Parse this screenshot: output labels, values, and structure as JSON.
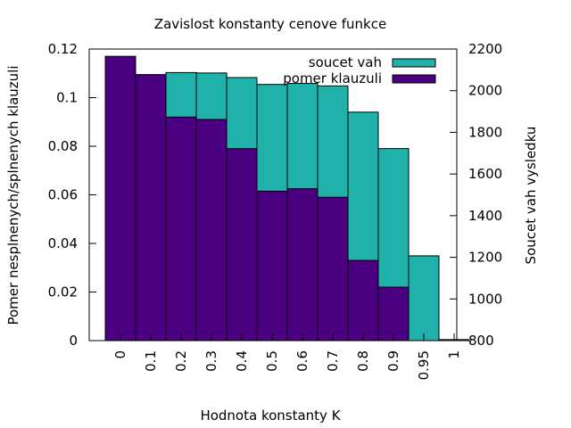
{
  "chart_data": {
    "type": "bar",
    "title": "Zavislost konstanty cenove funkce",
    "xlabel": "Hodnota konstanty K",
    "ylabel": "Pomer nesplnenych/splnenych klauzuli",
    "y2label": "Soucet vah vysledku",
    "categories": [
      "0",
      "0.1",
      "0.2",
      "0.3",
      "0.4",
      "0.5",
      "0.6",
      "0.7",
      "0.8",
      "0.9",
      "0.95",
      "1"
    ],
    "ylim": [
      0,
      0.12
    ],
    "y2lim": [
      800,
      2200
    ],
    "yticks": [
      "0",
      "0.02",
      "0.04",
      "0.06",
      "0.08",
      "0.1",
      "0.12"
    ],
    "y2ticks": [
      "800",
      "1000",
      "1200",
      "1400",
      "1600",
      "1800",
      "2000",
      "2200"
    ],
    "grid": false,
    "legend_position": "top-right",
    "series": [
      {
        "name": "soucet vah",
        "axis": "right",
        "color": "#20b2aa",
        "values": [
          2003,
          1945,
          2087,
          2085,
          2063,
          2030,
          2035,
          2023,
          1897,
          1722,
          1207,
          805
        ]
      },
      {
        "name": "pomer klauzuli",
        "axis": "left",
        "color": "#4b0082",
        "values": [
          0.117,
          0.1095,
          0.092,
          0.091,
          0.079,
          0.0615,
          0.0625,
          0.059,
          0.033,
          0.022,
          0,
          0
        ]
      }
    ]
  }
}
